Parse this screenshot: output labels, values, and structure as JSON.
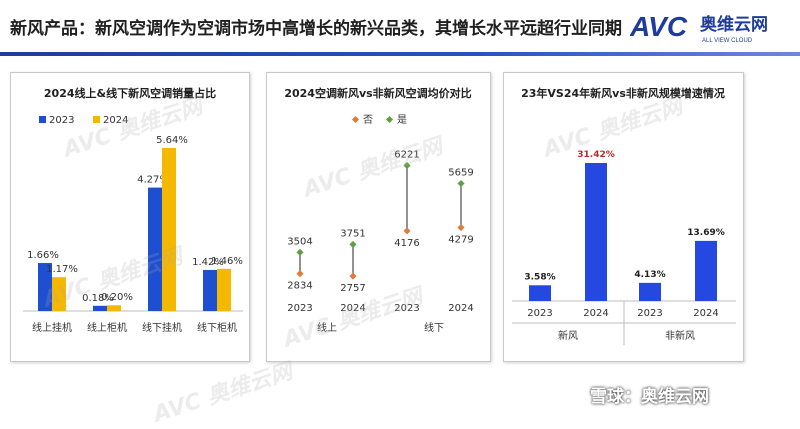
{
  "header": {
    "title": "新风产品：新风空调作为空调市场中高增长的新兴品类，其增长水平远超行业同期",
    "logo_letters": "AVC",
    "logo_cn": "奥维云网",
    "logo_en": "ALL VIEW CLOUD"
  },
  "watermark": {
    "text": "AVC 奥维云网"
  },
  "footer": {
    "brand": "雪球：奥维云网"
  },
  "colors": {
    "series_2023": "#1f4fd1",
    "series_2024": "#f5b800",
    "marker_no": "#e07b39",
    "marker_yes": "#5fa040",
    "growth_bar": "#2448e0",
    "highlight_red": "#c0282d",
    "header_rule": "#1f3b9b"
  },
  "chart_data": [
    {
      "type": "bar",
      "title": "2024线上&线下新风空调销量占比",
      "categories": [
        "线上挂机",
        "线上柜机",
        "线下挂机",
        "线下柜机"
      ],
      "series": [
        {
          "name": "2023",
          "values": [
            1.66,
            0.18,
            4.27,
            1.42
          ],
          "labels": [
            "1.66%",
            "0.18%",
            "4.27%",
            "1.42%"
          ]
        },
        {
          "name": "2024",
          "values": [
            1.17,
            0.2,
            5.64,
            1.46
          ],
          "labels": [
            "1.17%",
            "0.20%",
            "5.64%",
            "1.46%"
          ]
        }
      ],
      "legend": "top-left",
      "ylim": [
        0,
        5.64
      ],
      "grid": false
    },
    {
      "type": "scatter",
      "title": "2024空调新风vs非新风空调均价对比",
      "legend": [
        {
          "name": "否"
        },
        {
          "name": "是"
        }
      ],
      "groups": [
        "线上",
        "线下"
      ],
      "x": [
        "2023",
        "2024",
        "2023",
        "2024"
      ],
      "series": [
        {
          "name": "否",
          "values": [
            2834,
            2757,
            4176,
            4279
          ]
        },
        {
          "name": "是",
          "values": [
            3504,
            3751,
            6221,
            5659
          ]
        }
      ],
      "ylim": [
        2700,
        6300
      ],
      "grid": false
    },
    {
      "type": "bar",
      "title": "23年VS24年新风vs非新风规模增速情况",
      "groups": [
        "新风",
        "非新风"
      ],
      "categories": [
        "2023",
        "2024",
        "2023",
        "2024"
      ],
      "values": [
        3.58,
        31.42,
        4.13,
        13.69
      ],
      "labels": [
        "3.58%",
        "31.42%",
        "4.13%",
        "13.69%"
      ],
      "highlight_index": 1,
      "ylim": [
        0,
        31.42
      ],
      "grid": false
    }
  ]
}
